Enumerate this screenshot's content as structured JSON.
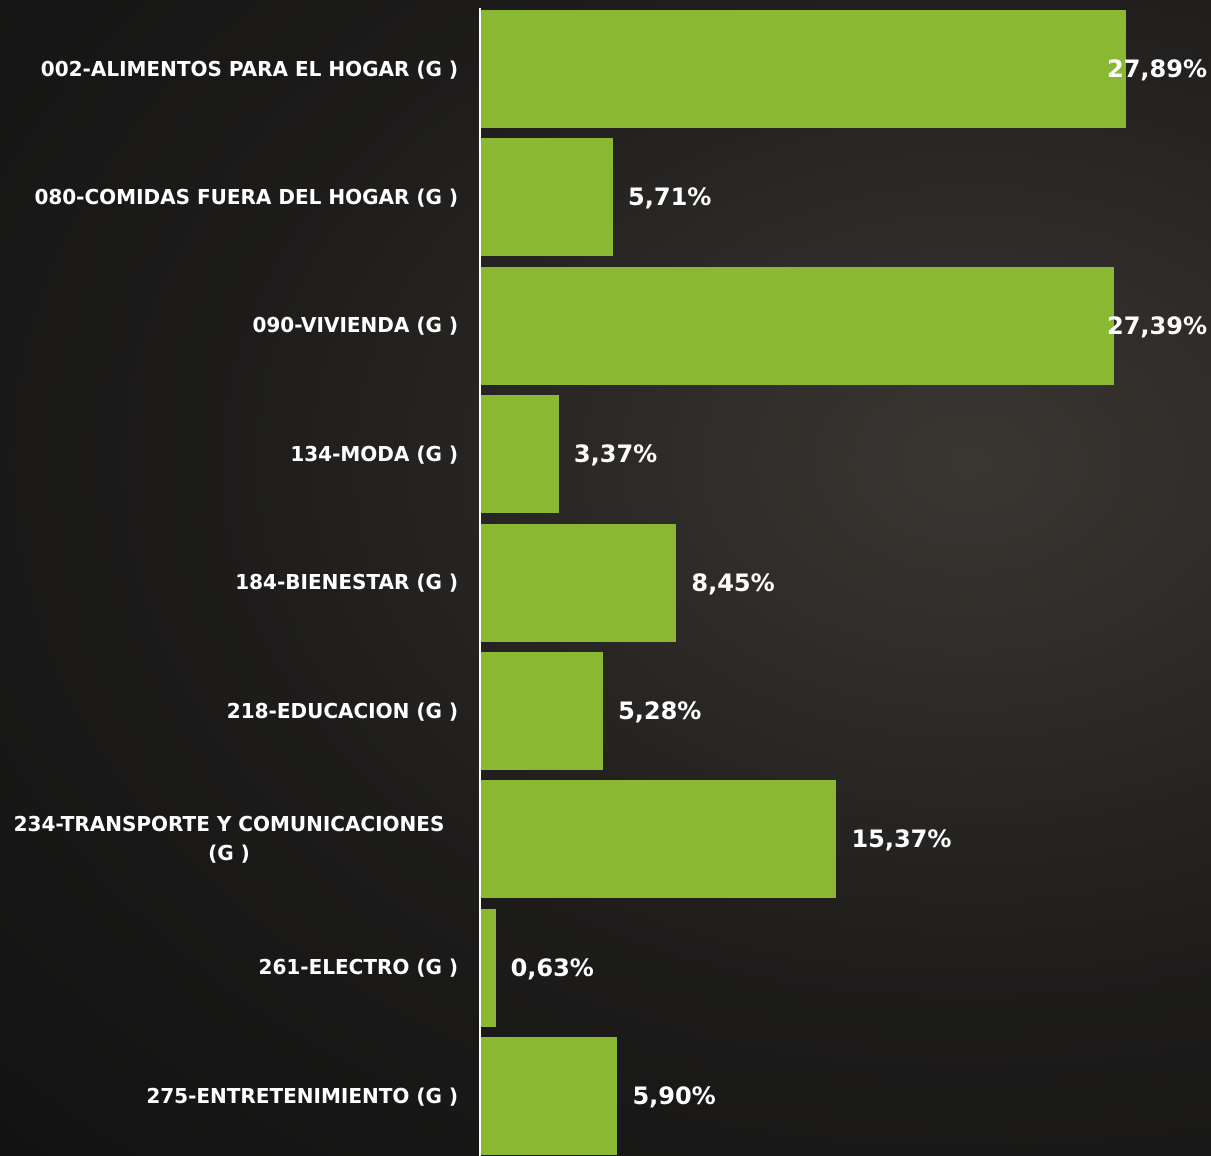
{
  "chart_data": {
    "type": "bar",
    "orientation": "horizontal",
    "color": "#8ab833",
    "categories": [
      "002-ALIMENTOS PARA EL HOGAR (G )",
      "080-COMIDAS FUERA DEL HOGAR (G )",
      "090-VIVIENDA (G )",
      "134-MODA (G )",
      "184-BIENESTAR (G )",
      "218-EDUCACION (G )",
      "234-TRANSPORTE Y COMUNICACIONES (G )",
      "261-ELECTRO (G )",
      "275-ENTRETENIMIENTO (G )"
    ],
    "values": [
      27.89,
      5.71,
      27.39,
      3.37,
      8.45,
      5.28,
      15.37,
      0.63,
      5.9
    ],
    "value_labels": [
      "27,89%",
      "5,71%",
      "27,39%",
      "3,37%",
      "8,45%",
      "5,28%",
      "15,37%",
      "0,63%",
      "5,90%"
    ]
  }
}
